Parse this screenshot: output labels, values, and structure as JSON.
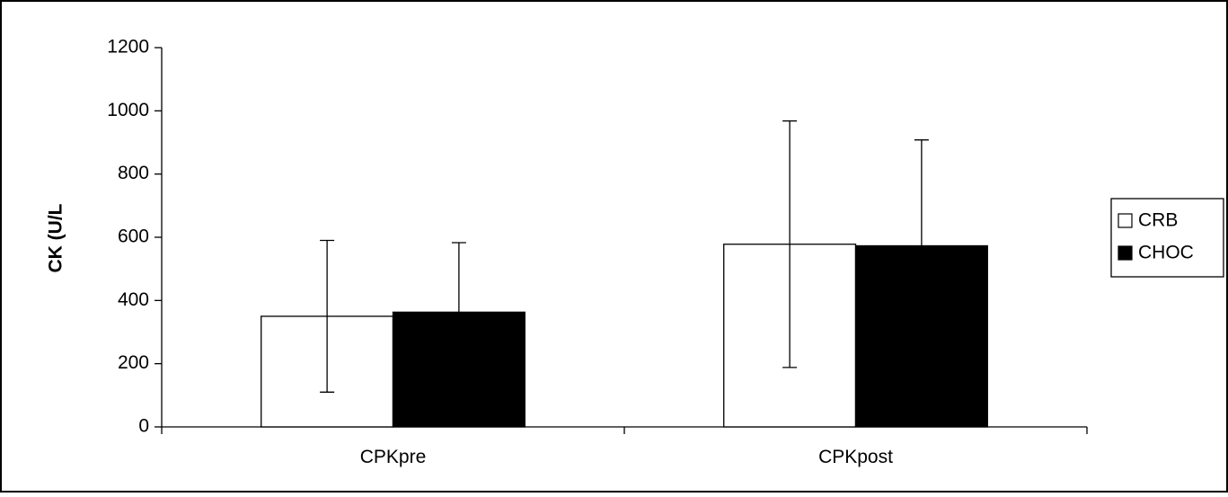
{
  "chart_data": {
    "type": "bar",
    "title": "",
    "xlabel": "",
    "ylabel": "CK (U/L",
    "ylim": [
      0,
      1200
    ],
    "yticks": [
      0,
      200,
      400,
      600,
      800,
      1000,
      1200
    ],
    "categories": [
      "CPKpre",
      "CPKpost"
    ],
    "series": [
      {
        "name": "CRB",
        "color": "#ffffff",
        "values": [
          350,
          578
        ],
        "error": [
          240,
          390
        ]
      },
      {
        "name": "CHOC",
        "color": "#000000",
        "values": [
          363,
          573
        ],
        "error": [
          220,
          335
        ]
      }
    ],
    "grid": false,
    "legend": "right"
  }
}
